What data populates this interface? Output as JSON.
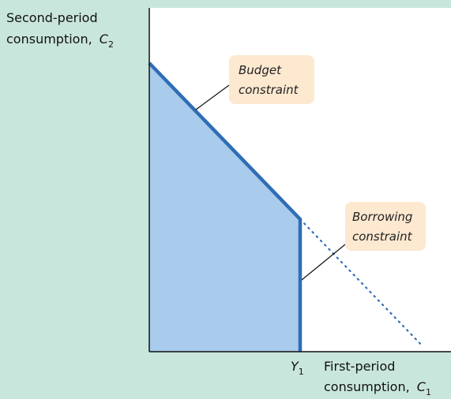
{
  "y_axis_label": {
    "line1": "Second-period",
    "line2": "consumption,",
    "variable": "C",
    "subscript": "2"
  },
  "x_axis_label": {
    "line1": "First-period",
    "line2": "consumption,",
    "variable": "C",
    "subscript": "1"
  },
  "income_label": {
    "variable": "Y",
    "subscript": "1"
  },
  "callouts": [
    {
      "line1": "Budget",
      "line2": "constraint"
    },
    {
      "line1": "Borrowing",
      "line2": "constraint"
    }
  ]
}
